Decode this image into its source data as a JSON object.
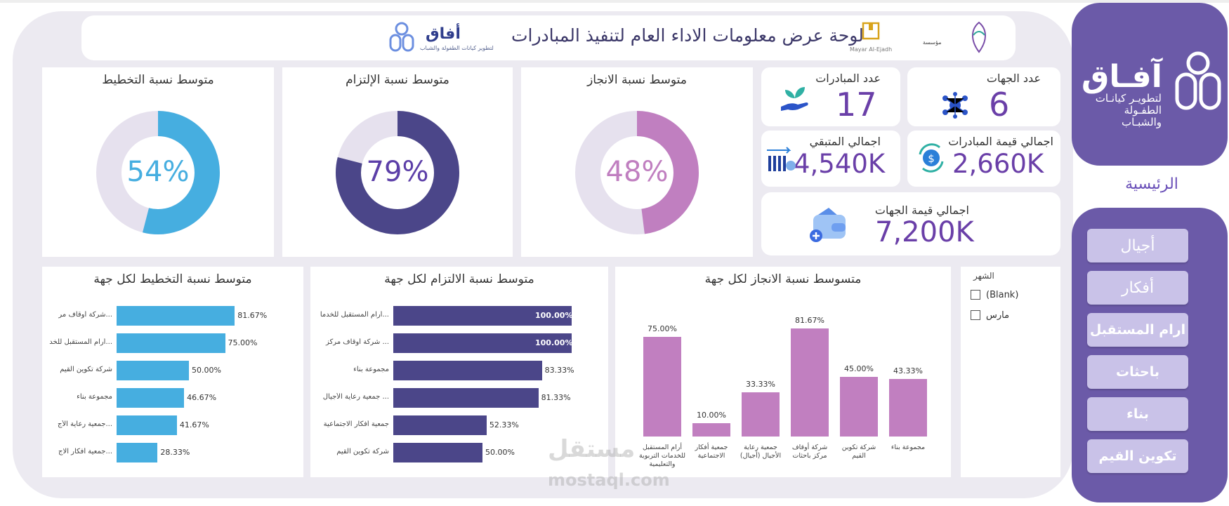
{
  "header": {
    "title": "لوحة عرض معلومات الاداء العام لتنفيذ المبادرات",
    "logo_word": "أفاق",
    "logo_sub": "لتطوير كيانات الطفولة والشباب",
    "logo2_sub": "Mayar Al-Ejadh",
    "logo3_sub": "مؤسسة"
  },
  "gauges": [
    {
      "title": "متوسط نسبة التخطيط",
      "value": 54,
      "label": "54%",
      "color": "#46aee0",
      "track": "#e6e1ee"
    },
    {
      "title": "متوسط نسبة الإلتزام",
      "value": 79,
      "label": "79%",
      "color": "#4b4689",
      "track": "#e6e1ee"
    },
    {
      "title": "متوسط نسبة الانجاز",
      "value": 48,
      "label": "48%",
      "color": "#c07fc0",
      "track": "#e6e1ee"
    }
  ],
  "kpis": {
    "entities_count": {
      "title": "عدد الجهات",
      "value": "6"
    },
    "initiatives_count": {
      "title": "عدد المبادرات",
      "value": "17"
    },
    "initiatives_value": {
      "title": "اجمالي قيمة المبادرات",
      "value": "2,660K"
    },
    "remaining": {
      "title": "اجمالي المتبقي",
      "value": "4,540K"
    },
    "entities_value": {
      "title": "اجمالي قيمة الجهات",
      "value": "7,200K"
    }
  },
  "chart_data": [
    {
      "type": "bar",
      "orientation": "horizontal",
      "title": "متوسط نسبة التخطيط لكل جهة",
      "color": "#46aee0",
      "categories": [
        "...شركة أوقاف مر",
        "...أرام المستقبل للخد",
        "شركة تكوين القيم",
        "مجموعة بناء",
        "...جمعية رعاية الأج",
        "...جمعية أفكار الاج"
      ],
      "values": [
        81.67,
        75.0,
        50.0,
        46.67,
        41.67,
        28.33
      ],
      "value_labels": [
        "81.67%",
        "75.00%",
        "50.00%",
        "46.67%",
        "41.67%",
        "28.33%"
      ],
      "xlim": [
        0,
        100
      ]
    },
    {
      "type": "bar",
      "orientation": "horizontal",
      "title": "متوسط نسبة الالتزام لكل جهة",
      "color": "#4b4689",
      "categories": [
        "...أرام المستقبل للخدما",
        "... شركة أوقاف مركز",
        "مجموعة بناء",
        "... جمعية رعاية الأجيال",
        "جمعية أفكار الاجتماعية",
        "شركة تكوين القيم"
      ],
      "values": [
        100.0,
        100.0,
        83.33,
        81.33,
        52.33,
        50.0
      ],
      "value_labels": [
        "100.00%",
        "100.00%",
        "83.33%",
        "81.33%",
        "52.33%",
        "50.00%"
      ],
      "xlim": [
        0,
        100
      ]
    },
    {
      "type": "bar",
      "orientation": "vertical",
      "title": "متسوسط نسبة الانجاز لكل جهة",
      "color": "#c07fc0",
      "categories": [
        "أرام المستقبل للخدمات التربوية والتعليمية",
        "جمعية أفكار الاجتماعية",
        "جمعية رعاية الأجيال (أجيال)",
        "شركة أوقاف مركز باحثات",
        "شركة تكوين القيم",
        "مجموعة بناء"
      ],
      "values": [
        75.0,
        10.0,
        33.33,
        81.67,
        45.0,
        43.33
      ],
      "value_labels": [
        "75.00%",
        "10.00%",
        "33.33%",
        "81.67%",
        "45.00%",
        "43.33%"
      ],
      "ylim": [
        0,
        90
      ]
    }
  ],
  "slicer": {
    "title": "الشهر",
    "options": [
      "(Blank)",
      "مارس"
    ]
  },
  "sidebar": {
    "brand_word": "آفـاق",
    "brand_sub": "لتطويـر كيانـات الطفـولة والشبـاب",
    "home": "الرئيسية",
    "nav": [
      "أجيال",
      "أفكار",
      "ارام المستقبل",
      "باحثات",
      "بناء",
      "تكوين القيم"
    ]
  },
  "watermark": {
    "ar": "مستقل",
    "en": "mostaql.com"
  }
}
